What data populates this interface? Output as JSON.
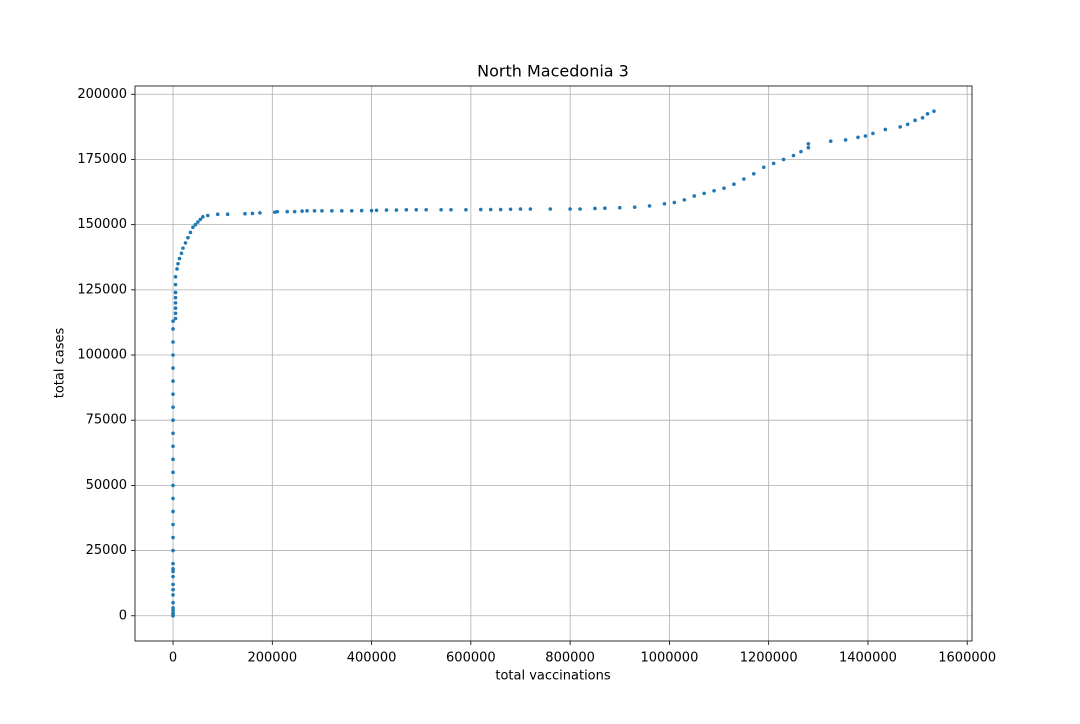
{
  "chart_data": {
    "type": "scatter",
    "title": "North Macedonia 3",
    "x_label": "total vaccinations",
    "y_label": "total cases",
    "color": "#1f77b4",
    "grid": true,
    "xlim": [
      -76650,
      1609650
    ],
    "ylim": [
      -9675,
      203175
    ],
    "xticks": [
      0,
      200000,
      400000,
      600000,
      800000,
      1000000,
      1200000,
      1400000,
      1600000
    ],
    "yticks": [
      0,
      25000,
      50000,
      75000,
      100000,
      125000,
      150000,
      175000,
      200000
    ],
    "x": [
      0,
      0,
      0,
      0,
      0,
      0,
      0,
      0,
      0,
      0,
      0,
      0,
      0,
      0,
      0,
      0,
      0,
      0,
      0,
      0,
      0,
      0,
      0,
      0,
      0,
      0,
      0,
      0,
      0,
      0,
      0,
      0,
      5000,
      5000,
      5000,
      5000,
      5000,
      5000,
      5000,
      5000,
      8000,
      10000,
      13000,
      17000,
      20000,
      25000,
      30000,
      35000,
      40000,
      45000,
      50000,
      55000,
      60000,
      70000,
      90000,
      110000,
      145000,
      160000,
      175000,
      205000,
      210000,
      230000,
      245000,
      260000,
      270000,
      285000,
      300000,
      320000,
      340000,
      360000,
      380000,
      400000,
      410000,
      430000,
      450000,
      470000,
      490000,
      510000,
      540000,
      560000,
      590000,
      620000,
      640000,
      660000,
      680000,
      700000,
      720000,
      760000,
      800000,
      820000,
      850000,
      870000,
      900000,
      930000,
      960000,
      990000,
      1010000,
      1030000,
      1050000,
      1070000,
      1090000,
      1110000,
      1130000,
      1150000,
      1170000,
      1190000,
      1210000,
      1230000,
      1250000,
      1265000,
      1280000,
      1280000,
      1325000,
      1355000,
      1380000,
      1395000,
      1410000,
      1435000,
      1465000,
      1480000,
      1495000,
      1510000,
      1520000,
      1533000
    ],
    "values": [
      0,
      500,
      1000,
      2000,
      3000,
      5000,
      8000,
      10000,
      12000,
      15000,
      17000,
      18000,
      20000,
      25000,
      30000,
      35000,
      40000,
      45000,
      50000,
      55000,
      60000,
      65000,
      70000,
      75000,
      80000,
      85000,
      90000,
      95000,
      100000,
      105000,
      110000,
      113000,
      114000,
      116000,
      118000,
      120000,
      122000,
      124000,
      127000,
      130000,
      133000,
      135000,
      137000,
      139000,
      141000,
      143000,
      145000,
      147000,
      149000,
      150000,
      151000,
      152000,
      153000,
      153500,
      154000,
      154000,
      154200,
      154300,
      154500,
      154800,
      155000,
      155000,
      155000,
      155200,
      155300,
      155300,
      155300,
      155300,
      155300,
      155300,
      155400,
      155400,
      155500,
      155600,
      155600,
      155700,
      155700,
      155700,
      155700,
      155700,
      155700,
      155800,
      155800,
      155800,
      155900,
      156000,
      156000,
      156000,
      156000,
      156000,
      156200,
      156300,
      156500,
      156700,
      157200,
      158000,
      158500,
      159500,
      161000,
      162000,
      163000,
      164000,
      165500,
      167500,
      169500,
      172000,
      173500,
      175000,
      176500,
      178000,
      179500,
      181000,
      182000,
      182500,
      183500,
      184000,
      185000,
      186500,
      187500,
      188500,
      190000,
      191000,
      192500,
      193500
    ]
  }
}
